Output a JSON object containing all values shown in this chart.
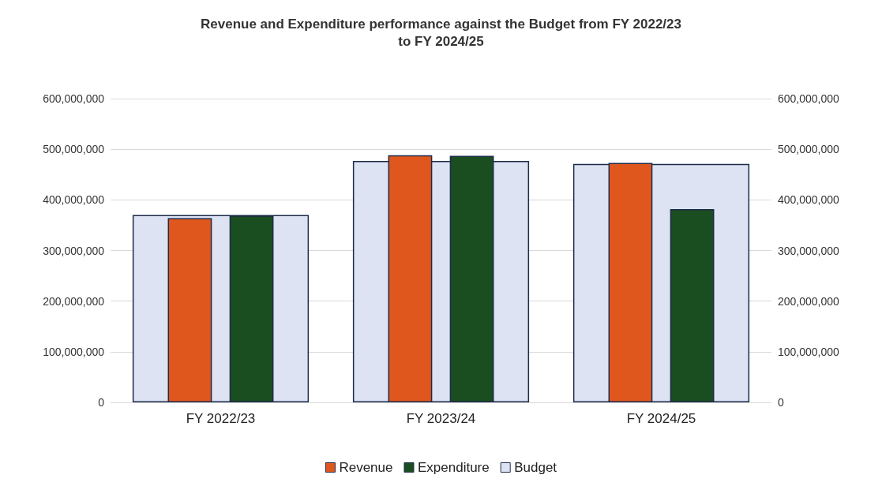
{
  "chart_data": {
    "type": "bar",
    "title": "Revenue and Expenditure performance against the Budget from FY 2022/23\nto FY 2024/25",
    "categories": [
      "FY 2022/23",
      "FY 2023/24",
      "FY 2024/25"
    ],
    "series": [
      {
        "name": "Revenue",
        "color": "#e0571e",
        "values": [
          364000000,
          488000000,
          473000000
        ]
      },
      {
        "name": "Expenditure",
        "color": "#1a4d1f",
        "values": [
          369000000,
          487000000,
          382000000
        ]
      },
      {
        "name": "Budget",
        "color": "#dde3f3",
        "values": [
          370000000,
          477000000,
          471000000
        ]
      }
    ],
    "ylim": [
      0,
      600000000
    ],
    "yticks": [
      0,
      {
        "value": 100000000,
        "label": "100,000,000"
      },
      {
        "value": 200000000,
        "label": "200,000,000"
      },
      {
        "value": 300000000,
        "label": "300,000,000"
      },
      {
        "value": 400000000,
        "label": "400,000,000"
      },
      {
        "value": 500000000,
        "label": "500,000,000"
      },
      {
        "value": 600000000,
        "label": "600,000,000"
      }
    ],
    "y2lim": [
      0,
      600000000
    ],
    "y2ticks": [
      0,
      {
        "value": 100000000,
        "label": "100,000,000"
      },
      {
        "value": 200000000,
        "label": "200,000,000"
      },
      {
        "value": 300000000,
        "label": "300,000,000"
      },
      {
        "value": 400000000,
        "label": "400,000,000"
      },
      {
        "value": 500000000,
        "label": "500,000,000"
      },
      {
        "value": 600000000,
        "label": "600,000,000"
      }
    ],
    "grid": "y",
    "legend": "bottom"
  }
}
